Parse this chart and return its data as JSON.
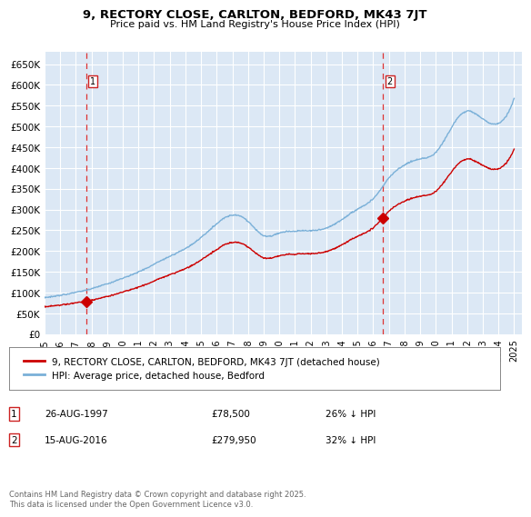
{
  "title": "9, RECTORY CLOSE, CARLTON, BEDFORD, MK43 7JT",
  "subtitle": "Price paid vs. HM Land Registry's House Price Index (HPI)",
  "ylim": [
    0,
    680000
  ],
  "yticks": [
    0,
    50000,
    100000,
    150000,
    200000,
    250000,
    300000,
    350000,
    400000,
    450000,
    500000,
    550000,
    600000,
    650000
  ],
  "ytick_labels": [
    "£0",
    "£50K",
    "£100K",
    "£150K",
    "£200K",
    "£250K",
    "£300K",
    "£350K",
    "£400K",
    "£450K",
    "£500K",
    "£550K",
    "£600K",
    "£650K"
  ],
  "bg_color": "#dce8f5",
  "grid_color": "#ffffff",
  "sale1_date": 1997.65,
  "sale1_price": 78500,
  "sale1_label": "1",
  "sale2_date": 2016.62,
  "sale2_price": 279950,
  "sale2_label": "2",
  "legend_property": "9, RECTORY CLOSE, CARLTON, BEDFORD, MK43 7JT (detached house)",
  "legend_hpi": "HPI: Average price, detached house, Bedford",
  "note1_label": "1",
  "note1_date": "26-AUG-1997",
  "note1_price": "£78,500",
  "note1_pct": "26% ↓ HPI",
  "note2_label": "2",
  "note2_date": "15-AUG-2016",
  "note2_price": "£279,950",
  "note2_pct": "32% ↓ HPI",
  "copyright": "Contains HM Land Registry data © Crown copyright and database right 2025.\nThis data is licensed under the Open Government Licence v3.0.",
  "hpi_color": "#7ab0d8",
  "property_color": "#cc0000",
  "dashed_line_color": "#dd3333",
  "hpi_knots_x": [
    1995,
    1997,
    1999,
    2001,
    2003,
    2005,
    2007,
    2008,
    2009,
    2010,
    2011,
    2012,
    2013,
    2014,
    2015,
    2016,
    2017,
    2018,
    2019,
    2020,
    2021,
    2022,
    2023,
    2024,
    2025
  ],
  "hpi_knots_y": [
    88000,
    100000,
    120000,
    148000,
    185000,
    230000,
    285000,
    270000,
    235000,
    240000,
    245000,
    245000,
    250000,
    270000,
    295000,
    320000,
    370000,
    400000,
    415000,
    430000,
    490000,
    530000,
    510000,
    500000,
    560000
  ]
}
